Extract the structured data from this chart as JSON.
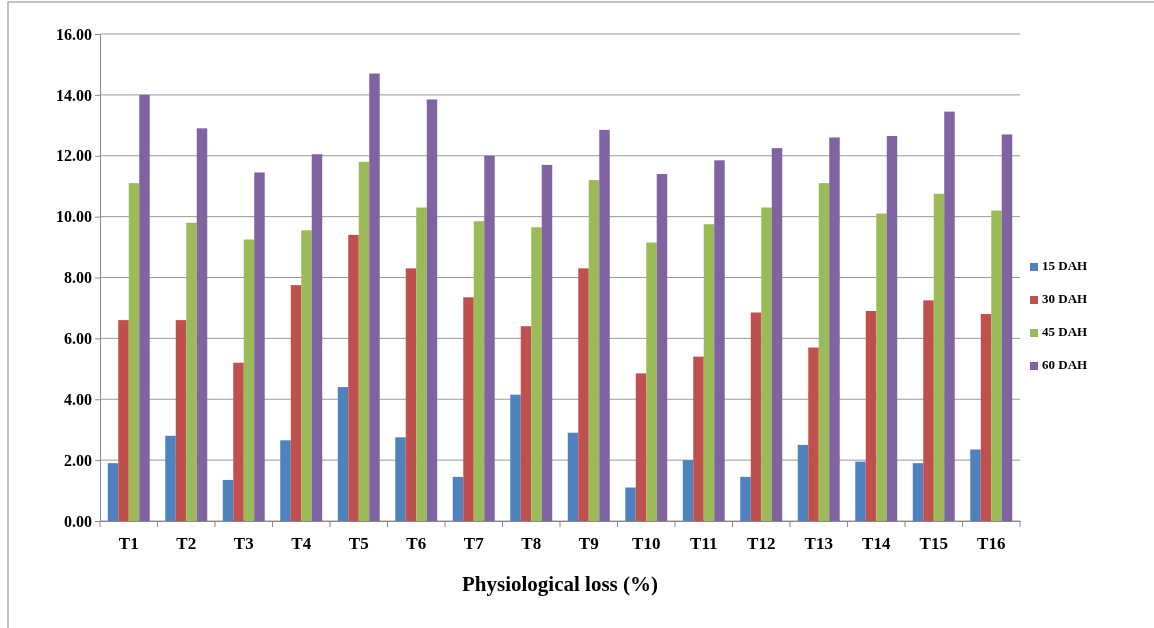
{
  "chart_data": {
    "type": "bar",
    "xlabel": "Physiological loss (%)",
    "categories": [
      "T1",
      "T2",
      "T3",
      "T4",
      "T5",
      "T6",
      "T7",
      "T8",
      "T9",
      "T10",
      "T11",
      "T12",
      "T13",
      "T14",
      "T15",
      "T16"
    ],
    "series": [
      {
        "name": "15 DAH",
        "color": "#4f81bd",
        "values": [
          1.9,
          2.8,
          1.35,
          2.65,
          4.4,
          2.75,
          1.45,
          4.15,
          2.9,
          1.1,
          2.0,
          1.45,
          2.5,
          1.95,
          1.9,
          2.35
        ]
      },
      {
        "name": "30 DAH",
        "color": "#c0504d",
        "values": [
          6.6,
          6.6,
          5.2,
          7.75,
          9.4,
          8.3,
          7.35,
          6.4,
          8.3,
          4.85,
          5.4,
          6.85,
          5.7,
          6.9,
          7.25,
          6.8
        ]
      },
      {
        "name": "45 DAH",
        "color": "#9bbb59",
        "values": [
          11.1,
          9.8,
          9.25,
          9.55,
          11.8,
          10.3,
          9.85,
          9.65,
          11.2,
          9.15,
          9.75,
          10.3,
          11.1,
          10.1,
          10.75,
          10.2
        ]
      },
      {
        "name": "60 DAH",
        "color": "#8064a2",
        "values": [
          14.0,
          12.9,
          11.45,
          12.05,
          14.7,
          13.85,
          12.0,
          11.7,
          12.85,
          11.4,
          11.85,
          12.25,
          12.6,
          12.65,
          13.45,
          12.7
        ]
      }
    ],
    "ylim": [
      0,
      16
    ],
    "yticks": [
      {
        "value": 0,
        "label": "0.00"
      },
      {
        "value": 2,
        "label": "2.00"
      },
      {
        "value": 4,
        "label": "4.00"
      },
      {
        "value": 6,
        "label": "6.00"
      },
      {
        "value": 8,
        "label": "8.00"
      },
      {
        "value": 10,
        "label": "10.00"
      },
      {
        "value": 12,
        "label": "12.00"
      },
      {
        "value": 14,
        "label": "14.00"
      },
      {
        "value": 16,
        "label": "16.00"
      }
    ],
    "grid": "y",
    "legend": "right"
  }
}
